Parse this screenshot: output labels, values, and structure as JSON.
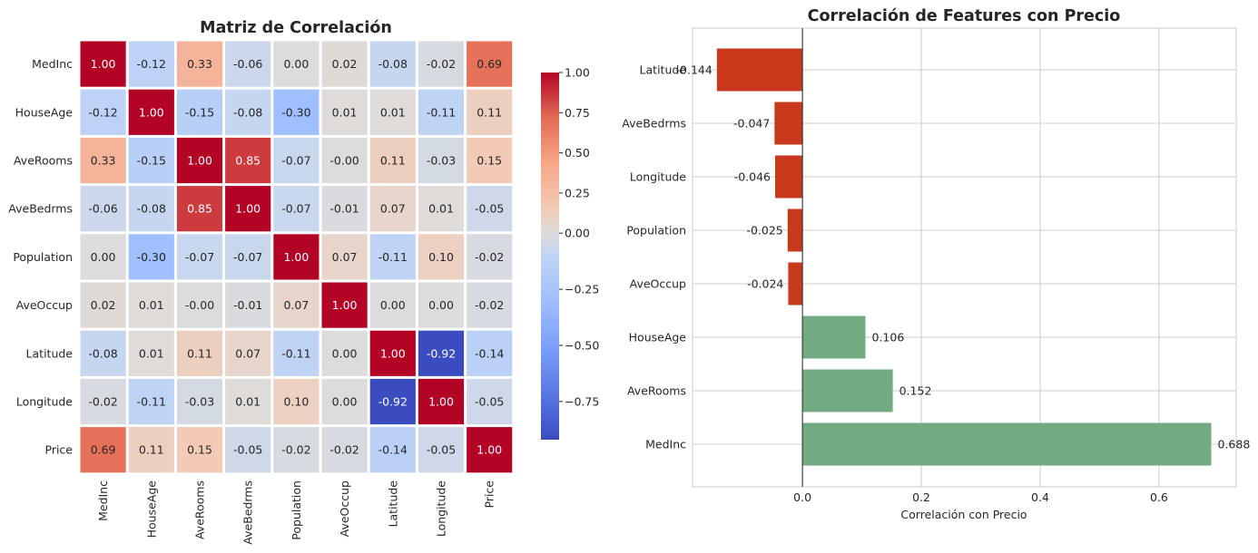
{
  "chart_data": [
    {
      "type": "heatmap",
      "title": "Matriz de Correlación",
      "labels": [
        "MedInc",
        "HouseAge",
        "AveRooms",
        "AveBedrms",
        "Population",
        "AveOccup",
        "Latitude",
        "Longitude",
        "Price"
      ],
      "values": [
        [
          "1.00",
          "-0.12",
          "0.33",
          "-0.06",
          "0.00",
          "0.02",
          "-0.08",
          "-0.02",
          "0.69"
        ],
        [
          "-0.12",
          "1.00",
          "-0.15",
          "-0.08",
          "-0.30",
          "0.01",
          "0.01",
          "-0.11",
          "0.11"
        ],
        [
          "0.33",
          "-0.15",
          "1.00",
          "0.85",
          "-0.07",
          "-0.00",
          "0.11",
          "-0.03",
          "0.15"
        ],
        [
          "-0.06",
          "-0.08",
          "0.85",
          "1.00",
          "-0.07",
          "-0.01",
          "0.07",
          "0.01",
          "-0.05"
        ],
        [
          "0.00",
          "-0.30",
          "-0.07",
          "-0.07",
          "1.00",
          "0.07",
          "-0.11",
          "0.10",
          "-0.02"
        ],
        [
          "0.02",
          "0.01",
          "-0.00",
          "-0.01",
          "0.07",
          "1.00",
          "0.00",
          "0.00",
          "-0.02"
        ],
        [
          "-0.08",
          "0.01",
          "0.11",
          "0.07",
          "-0.11",
          "0.00",
          "1.00",
          "-0.92",
          "-0.14"
        ],
        [
          "-0.02",
          "-0.11",
          "-0.03",
          "0.01",
          "0.10",
          "0.00",
          "-0.92",
          "1.00",
          "-0.05"
        ],
        [
          "0.69",
          "0.11",
          "0.15",
          "-0.05",
          "-0.02",
          "-0.02",
          "-0.14",
          "-0.05",
          "1.00"
        ]
      ],
      "colormap": "coolwarm",
      "colorbar_range": [
        -0.92,
        1.0
      ],
      "colorbar_ticks": [
        "1.00",
        "0.75",
        "0.50",
        "0.25",
        "0.00",
        "−0.25",
        "−0.50",
        "−0.75"
      ]
    },
    {
      "type": "bar",
      "orientation": "horizontal",
      "title": "Correlación de Features con Precio",
      "xlabel": "Correlación con Precio",
      "categories": [
        "Latitude",
        "AveBedrms",
        "Longitude",
        "Population",
        "AveOccup",
        "HouseAge",
        "AveRooms",
        "MedInc"
      ],
      "values": [
        -0.144,
        -0.047,
        -0.046,
        -0.025,
        -0.024,
        0.106,
        0.152,
        0.688
      ],
      "value_labels": [
        "-0.144",
        "-0.047",
        "-0.046",
        "-0.025",
        "-0.024",
        "0.106",
        "0.152",
        "0.688"
      ],
      "xticks": [
        "0.0",
        "0.2",
        "0.4",
        "0.6"
      ],
      "xlim": [
        -0.185,
        0.73
      ],
      "colors": {
        "negative": "#c93a1d",
        "positive": "#72aa82"
      },
      "grid": true
    }
  ]
}
